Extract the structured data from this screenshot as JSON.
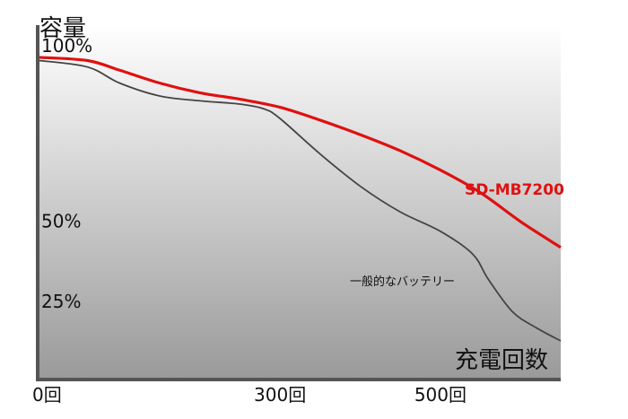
{
  "chart_data": {
    "type": "line",
    "ylabel": "容量",
    "xlabel": "充電回数",
    "y_ticks": [
      {
        "label": "100%",
        "value": 100
      },
      {
        "label": "50%",
        "value": 50
      },
      {
        "label": "25%",
        "value": 25
      }
    ],
    "x_ticks": [
      {
        "label": "0回",
        "value": 0
      },
      {
        "label": "300回",
        "value": 300
      },
      {
        "label": "500回",
        "value": 500
      }
    ],
    "xlim": [
      0,
      650
    ],
    "ylim": [
      0,
      110
    ],
    "grid": false,
    "series": [
      {
        "name": "SD-MB7200",
        "color": "#e01010",
        "x": [
          0,
          60,
          100,
          150,
          200,
          250,
          300,
          350,
          400,
          450,
          500,
          550,
          600,
          650
        ],
        "y": [
          100,
          99,
          96,
          92,
          89,
          87,
          84.5,
          80.5,
          76,
          71,
          65,
          58,
          49,
          41
        ]
      },
      {
        "name": "一般的なバッテリー",
        "color": "#444444",
        "x": [
          0,
          60,
          100,
          150,
          200,
          250,
          280,
          300,
          350,
          400,
          450,
          500,
          540,
          560,
          590,
          620,
          650
        ],
        "y": [
          99,
          97,
          92,
          88,
          86.5,
          85.5,
          84,
          81,
          70,
          60,
          52,
          46,
          39,
          31,
          21,
          16,
          12
        ]
      }
    ]
  }
}
